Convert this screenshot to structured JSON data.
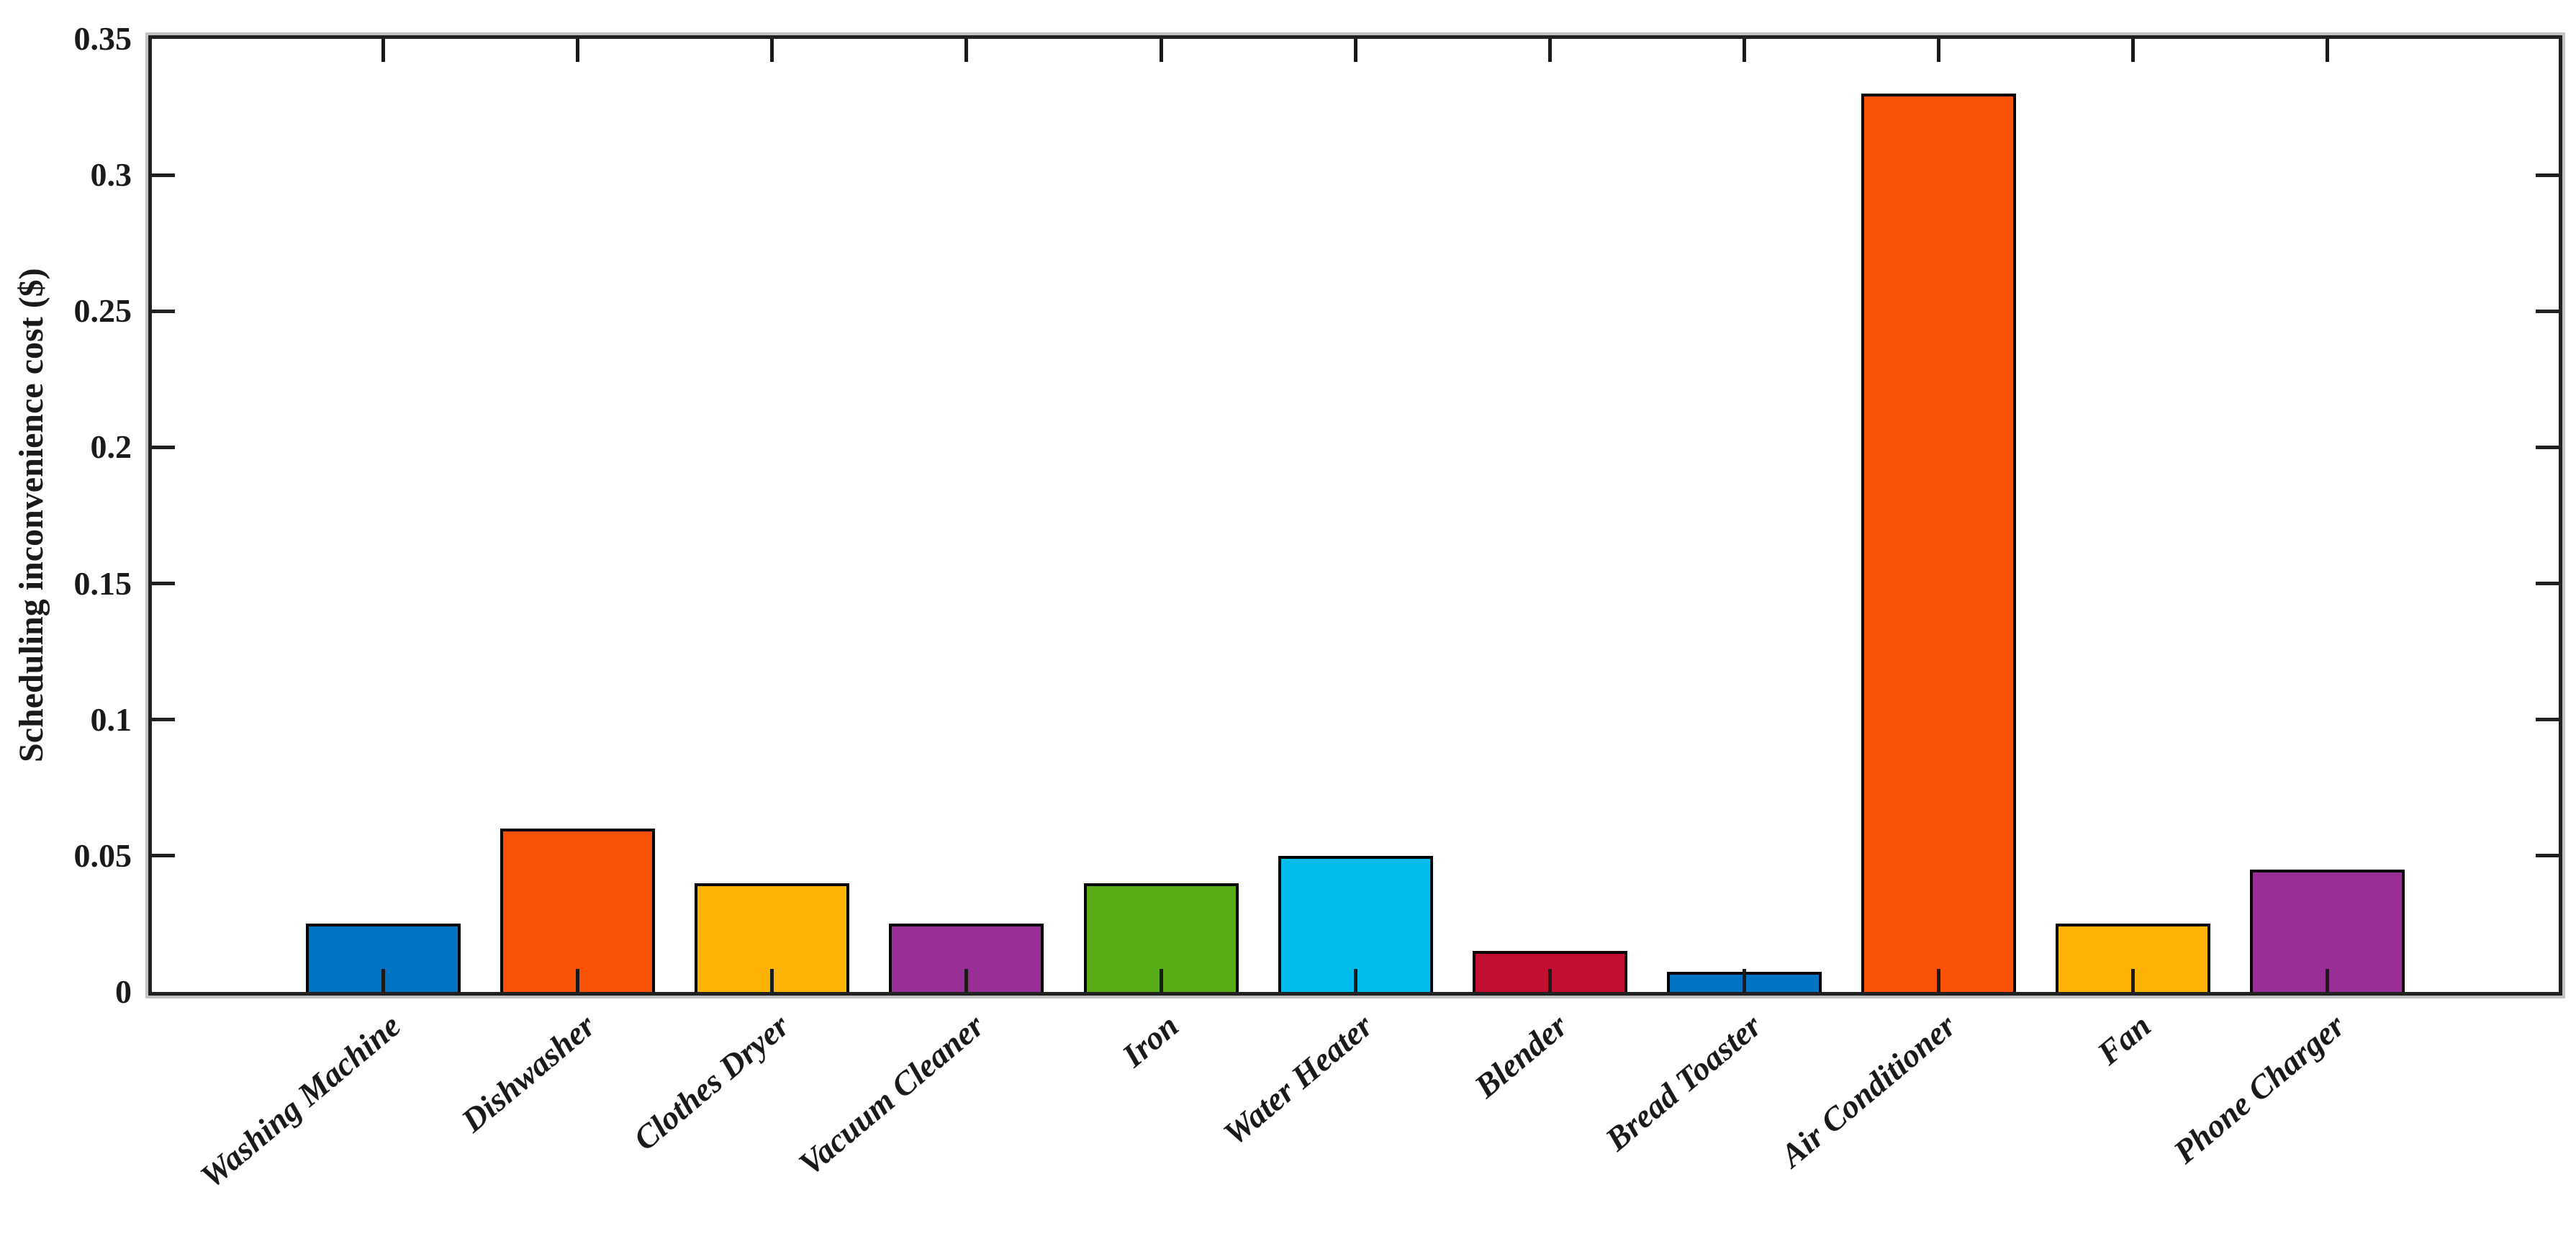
{
  "chart_data": {
    "type": "bar",
    "title": "",
    "categories": [
      "Washing Machine",
      "Dishwasher",
      "Clothes Dryer",
      "Vacuum Cleaner",
      "Iron",
      "Water Heater",
      "Blender",
      "Bread Toaster",
      "Air Conditioner",
      "Fan",
      "Phone Charger"
    ],
    "values": [
      0.025,
      0.06,
      0.04,
      0.025,
      0.04,
      0.05,
      0.015,
      0.0075,
      0.33,
      0.025,
      0.045
    ],
    "bar_colors": [
      "#0073C2",
      "#F95106",
      "#FEB407",
      "#9A2E97",
      "#58AC17",
      "#00BCEC",
      "#C20E2F",
      "#0073C2",
      "#F95106",
      "#FEB407",
      "#9A2E97"
    ],
    "bar_edge_color": "#000000",
    "xlabel": "",
    "ylabel": "Scheduling inconvenience cost ($)",
    "ylim": [
      0,
      0.35
    ],
    "ytick_step": 0.05,
    "ytick_labels": [
      "0",
      "0.05",
      "0.1",
      "0.15",
      "0.2",
      "0.25",
      "0.3",
      "0.35"
    ],
    "x_tick_label_rotation_deg": 40,
    "grid": false,
    "legend": null,
    "axis_color": "#212121",
    "background_color": "#ffffff",
    "tick_direction": "in"
  }
}
